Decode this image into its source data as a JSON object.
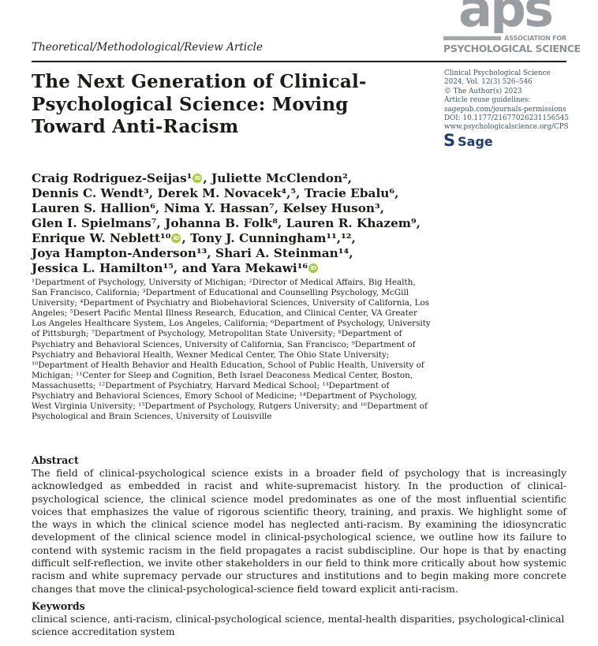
{
  "page": {
    "article_type": "Theoretical/Methodological/Review Article"
  },
  "aps_logo": {
    "letters": "aps",
    "line1": "ASSOCIATION FOR",
    "line2": "PSYCHOLOGICAL SCIENCE"
  },
  "journal_info": {
    "lines": [
      "Clinical Psychological Science",
      "2024, Vol. 12(3) 526–546",
      "© The Author(s) 2023",
      "Article reuse guidelines:",
      "sagepub.com/journals-permissions",
      "DOI: 10.1177/21677026231156545",
      "www.psychologicalscience.org/CPS"
    ],
    "publisher_s": "S",
    "publisher_name": "Sage"
  },
  "title": {
    "lines": [
      "The Next Generation of Clinical-",
      "Psychological Science: Moving",
      "Toward Anti-Racism"
    ]
  },
  "orcid_label": "iD",
  "authors": {
    "lines": [
      {
        "pre": "Craig Rodriguez-Seijas¹",
        "orcid": true,
        "post": ", Juliette McClendon²,"
      },
      {
        "pre": "Dennis C. Wendt³, Derek M. Novacek⁴,⁵, Tracie Ebalu⁶,",
        "orcid": false,
        "post": ""
      },
      {
        "pre": "Lauren S. Hallion⁶, Nima Y. Hassan⁷, Kelsey Huson³,",
        "orcid": false,
        "post": ""
      },
      {
        "pre": "Glen I. Spielmans⁷, Johanna B. Folk⁸, Lauren R. Khazem⁹,",
        "orcid": false,
        "post": ""
      },
      {
        "pre": "Enrique W. Neblett¹⁰",
        "orcid": true,
        "post": ", Tony J. Cunningham¹¹,¹²,"
      },
      {
        "pre": "Joya Hampton-Anderson¹³, Shari A. Steinman¹⁴,",
        "orcid": false,
        "post": ""
      },
      {
        "pre": "Jessica L. Hamilton¹⁵, and Yara Mekawi¹⁶",
        "orcid": true,
        "post": ""
      }
    ]
  },
  "affiliations": {
    "text": "¹Department of Psychology, University of Michigan; ²Director of Medical Affairs, Big Health, San Francisco, California; ³Department of Educational and Counselling Psychology, McGill University; ⁴Department of Psychiatry and Biobehavioral Sciences, University of California, Los Angeles; ⁵Desert Pacific Mental Illness Research, Education, and Clinical Center, VA Greater Los Angeles Healthcare System, Los Angeles, California; ⁶Department of Psychology, University of Pittsburgh; ⁷Department of Psychology, Metropolitan State University; ⁸Department of Psychiatry and Behavioral Sciences, University of California, San Francisco; ⁹Department of Psychiatry and Behavioral Health, Wexner Medical Center, The Ohio State University; ¹⁰Department of Health Behavior and Health Education, School of Public Health, University of Michigan; ¹¹Center for Sleep and Cognition, Beth Israel Deaconess Medical Center, Boston, Massachusetts; ¹²Department of Psychiatry, Harvard Medical School; ¹³Department of Psychiatry and Behavioral Sciences, Emory School of Medicine; ¹⁴Department of Psychology, West Virginia University; ¹⁵Department of Psychology, Rutgers University; and ¹⁶Department of Psychological and Brain Sciences, University of Louisville"
  },
  "abstract": {
    "heading": "Abstract",
    "text": "The field of clinical-psychological science exists in a broader field of psychology that is increasingly acknowledged as embedded in racist and white-supremacist history. In the production of clinical-psychological science, the clinical science model predominates as one of the most influential scientific voices that emphasizes the value of rigorous scientific theory, training, and praxis. We highlight some of the ways in which the clinical science model has neglected anti-racism. By examining the idiosyncratic development of the clinical science model in clinical-psychological science, we outline how its failure to contend with systemic racism in the field propagates a racist subdiscipline. Our hope is that by enacting difficult self-reflection, we invite other stakeholders in our field to think more critically about how systemic racism and white supremacy pervade our structures and institutions and to begin making more concrete changes that move the clinical-psychological-science field toward explicit anti-racism."
  },
  "keywords": {
    "heading": "Keywords",
    "text": "clinical science, anti-racism, clinical-psychological science, mental-health disparities, psychological-clinical science accreditation system"
  },
  "colors": {
    "orcid_green": "#A6CE39",
    "sage_navy": "#1e3c6e",
    "aps_gray": "#8d9194",
    "meta_teal": "#3a545e"
  }
}
